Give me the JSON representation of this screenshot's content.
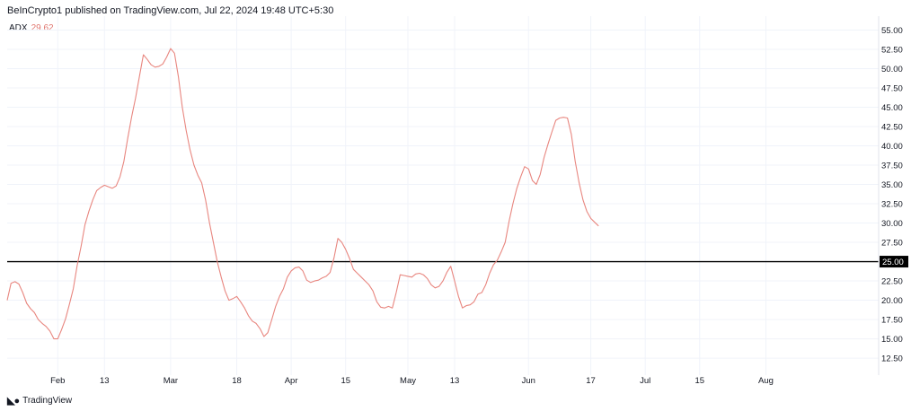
{
  "header": {
    "text": "BeInCrypto1 published on TradingView.com, Jul 22, 2024 19:48 UTC+5:30"
  },
  "indicator": {
    "name": "ADX",
    "value": "29.62"
  },
  "footer": {
    "brand": "TradingView",
    "logo_icon": "tradingview-logo-icon"
  },
  "colors": {
    "series": "#e8867f",
    "reference": "#000000",
    "grid": "#f0f3fa",
    "axis_text": "#131722"
  },
  "chart_data": {
    "type": "line",
    "title": "",
    "xlabel": "",
    "ylabel": "",
    "ylim": [
      10.3,
      56.8
    ],
    "grid": true,
    "y_ticks": [
      "12.50",
      "15.00",
      "17.50",
      "20.00",
      "22.50",
      "25.00",
      "27.50",
      "30.00",
      "32.50",
      "35.00",
      "37.50",
      "40.00",
      "42.50",
      "45.00",
      "47.50",
      "50.00",
      "52.50",
      "55.00"
    ],
    "x_ticks": [
      {
        "label": "Feb",
        "day": 31
      },
      {
        "label": "13",
        "day": 43
      },
      {
        "label": "Mar",
        "day": 60
      },
      {
        "label": "18",
        "day": 77
      },
      {
        "label": "Apr",
        "day": 91
      },
      {
        "label": "15",
        "day": 105
      },
      {
        "label": "May",
        "day": 121
      },
      {
        "label": "13",
        "day": 133
      },
      {
        "label": "Jun",
        "day": 152
      },
      {
        "label": "17",
        "day": 168
      },
      {
        "label": "Jul",
        "day": 182
      },
      {
        "label": "15",
        "day": 196
      },
      {
        "label": "Aug",
        "day": 213
      }
    ],
    "reference_line": {
      "value": 25.0,
      "label": "25.00"
    },
    "series": [
      {
        "values": [
          [
            18,
            20.0
          ],
          [
            19,
            22.2
          ],
          [
            20,
            22.4
          ],
          [
            21,
            22.1
          ],
          [
            22,
            21.0
          ],
          [
            23,
            19.6
          ],
          [
            24,
            18.9
          ],
          [
            25,
            18.4
          ],
          [
            26,
            17.5
          ],
          [
            27,
            17.0
          ],
          [
            28,
            16.6
          ],
          [
            29,
            16.0
          ],
          [
            30,
            15.0
          ],
          [
            31,
            15.0
          ],
          [
            32,
            16.2
          ],
          [
            33,
            17.6
          ],
          [
            34,
            19.5
          ],
          [
            35,
            21.5
          ],
          [
            36,
            24.5
          ],
          [
            37,
            27.0
          ],
          [
            38,
            29.8
          ],
          [
            39,
            31.5
          ],
          [
            40,
            33.0
          ],
          [
            41,
            34.2
          ],
          [
            42,
            34.6
          ],
          [
            43,
            34.9
          ],
          [
            44,
            34.7
          ],
          [
            45,
            34.5
          ],
          [
            46,
            34.8
          ],
          [
            47,
            36.0
          ],
          [
            48,
            38.0
          ],
          [
            49,
            41.0
          ],
          [
            50,
            43.8
          ],
          [
            51,
            46.2
          ],
          [
            52,
            49.0
          ],
          [
            53,
            51.8
          ],
          [
            54,
            51.2
          ],
          [
            55,
            50.5
          ],
          [
            56,
            50.2
          ],
          [
            57,
            50.3
          ],
          [
            58,
            50.6
          ],
          [
            59,
            51.5
          ],
          [
            60,
            52.6
          ],
          [
            61,
            52.0
          ],
          [
            62,
            49.0
          ],
          [
            63,
            45.0
          ],
          [
            64,
            42.0
          ],
          [
            65,
            39.5
          ],
          [
            66,
            37.5
          ],
          [
            67,
            36.2
          ],
          [
            68,
            35.2
          ],
          [
            69,
            33.0
          ],
          [
            70,
            30.0
          ],
          [
            71,
            27.5
          ],
          [
            72,
            25.0
          ],
          [
            73,
            23.0
          ],
          [
            74,
            21.2
          ],
          [
            75,
            20.0
          ],
          [
            76,
            20.2
          ],
          [
            77,
            20.5
          ],
          [
            78,
            19.8
          ],
          [
            79,
            19.0
          ],
          [
            80,
            18.0
          ],
          [
            81,
            17.3
          ],
          [
            82,
            17.0
          ],
          [
            83,
            16.3
          ],
          [
            84,
            15.3
          ],
          [
            85,
            15.8
          ],
          [
            86,
            17.5
          ],
          [
            87,
            19.2
          ],
          [
            88,
            20.5
          ],
          [
            89,
            21.5
          ],
          [
            90,
            23.0
          ],
          [
            91,
            23.8
          ],
          [
            92,
            24.2
          ],
          [
            93,
            24.3
          ],
          [
            94,
            23.8
          ],
          [
            95,
            22.6
          ],
          [
            96,
            22.3
          ],
          [
            97,
            22.5
          ],
          [
            98,
            22.6
          ],
          [
            99,
            22.9
          ],
          [
            100,
            23.1
          ],
          [
            101,
            23.6
          ],
          [
            102,
            25.5
          ],
          [
            103,
            28.0
          ],
          [
            104,
            27.5
          ],
          [
            105,
            26.6
          ],
          [
            106,
            25.4
          ],
          [
            107,
            24.0
          ],
          [
            108,
            23.5
          ],
          [
            109,
            23.0
          ],
          [
            110,
            22.5
          ],
          [
            111,
            22.0
          ],
          [
            112,
            21.2
          ],
          [
            113,
            19.8
          ],
          [
            114,
            19.1
          ],
          [
            115,
            19.0
          ],
          [
            116,
            19.2
          ],
          [
            117,
            19.0
          ],
          [
            118,
            21.0
          ],
          [
            119,
            23.3
          ],
          [
            120,
            23.2
          ],
          [
            121,
            23.1
          ],
          [
            122,
            23.0
          ],
          [
            123,
            23.4
          ],
          [
            124,
            23.5
          ],
          [
            125,
            23.3
          ],
          [
            126,
            22.8
          ],
          [
            127,
            22.0
          ],
          [
            128,
            21.6
          ],
          [
            129,
            21.8
          ],
          [
            130,
            22.5
          ],
          [
            131,
            23.6
          ],
          [
            132,
            24.4
          ],
          [
            133,
            22.5
          ],
          [
            134,
            20.5
          ],
          [
            135,
            19.0
          ],
          [
            136,
            19.3
          ],
          [
            137,
            19.4
          ],
          [
            138,
            19.8
          ],
          [
            139,
            20.8
          ],
          [
            140,
            21.0
          ],
          [
            141,
            22.0
          ],
          [
            142,
            23.5
          ],
          [
            143,
            24.6
          ],
          [
            144,
            25.2
          ],
          [
            145,
            26.3
          ],
          [
            146,
            27.5
          ],
          [
            147,
            30.2
          ],
          [
            148,
            32.5
          ],
          [
            149,
            34.5
          ],
          [
            150,
            36.0
          ],
          [
            151,
            37.3
          ],
          [
            152,
            37.0
          ],
          [
            153,
            35.5
          ],
          [
            154,
            35.0
          ],
          [
            155,
            36.3
          ],
          [
            156,
            38.5
          ],
          [
            157,
            40.2
          ],
          [
            158,
            41.8
          ],
          [
            159,
            43.3
          ],
          [
            160,
            43.6
          ],
          [
            161,
            43.7
          ],
          [
            162,
            43.6
          ],
          [
            163,
            41.5
          ],
          [
            164,
            38.0
          ],
          [
            165,
            35.2
          ],
          [
            166,
            33.0
          ],
          [
            167,
            31.5
          ],
          [
            168,
            30.6
          ],
          [
            169,
            30.1
          ],
          [
            170,
            29.62
          ]
        ]
      }
    ]
  }
}
